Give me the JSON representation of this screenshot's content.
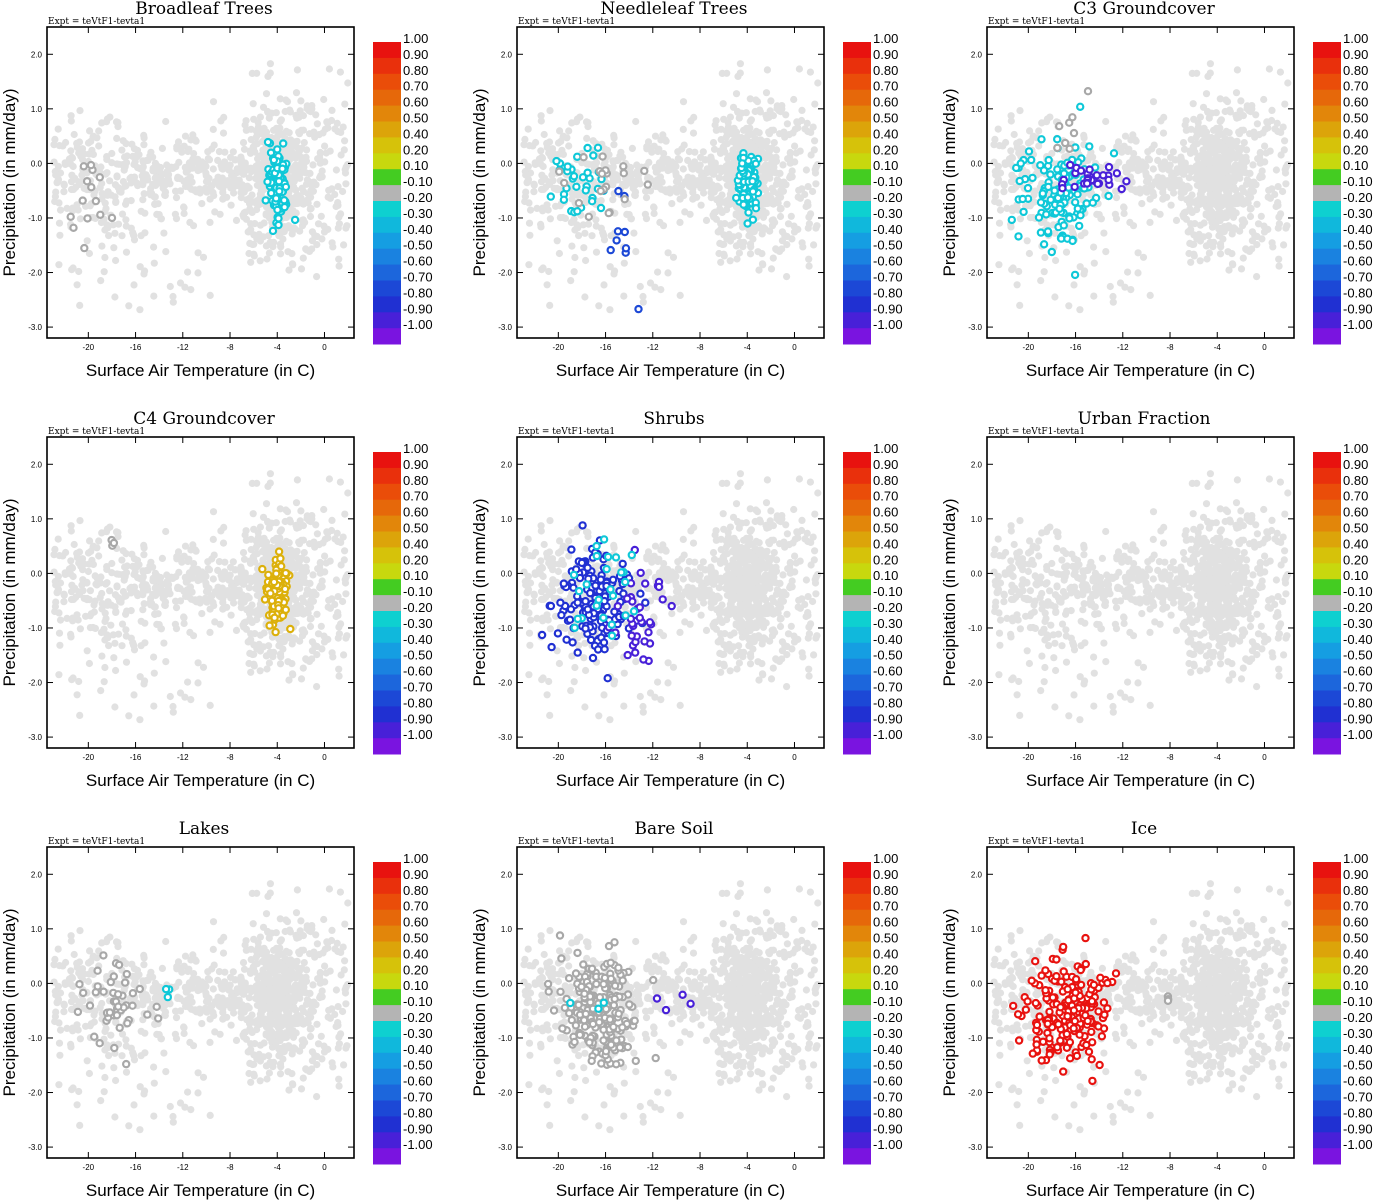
{
  "figure": {
    "expt_label": "Expt = teVtF1-tevta1",
    "xlabel": "Surface Air Temperature (in C)",
    "ylabel": "Precipitation (in mm/day)"
  },
  "colorbar": {
    "labels": [
      "1.00",
      "0.90",
      "0.80",
      "0.70",
      "0.60",
      "0.50",
      "0.40",
      "0.20",
      "0.10",
      "-0.10",
      "-0.20",
      "-0.30",
      "-0.40",
      "-0.50",
      "-0.60",
      "-0.70",
      "-0.80",
      "-0.90",
      "-1.00"
    ],
    "colors": [
      "#e8120f",
      "#e9300c",
      "#ea4d09",
      "#e6680a",
      "#e2860a",
      "#dca40a",
      "#d6c20a",
      "#c8d80e",
      "#44cc22",
      "#b4b4b4",
      "#0ed0d0",
      "#10b8dc",
      "#159ee2",
      "#1a82e0",
      "#1c66dc",
      "#1c48d6",
      "#2030d2",
      "#4820d8",
      "#7a14e0"
    ]
  },
  "chart_data": [
    {
      "type": "scatter",
      "title": "Broadleaf Trees",
      "xlabel": "Surface Air Temperature (in C)",
      "ylabel": "Precipitation (in mm/day)",
      "xlim": [
        -23.5,
        2.5
      ],
      "ylim": [
        -3.2,
        2.5
      ],
      "xticks": [
        "-20",
        "-16",
        "-12",
        "-8",
        "-4",
        "0"
      ],
      "yticks": [
        "2.0",
        "1.0",
        "0.0",
        "-1.0",
        "-2.0",
        "-3.0"
      ],
      "background_color": "#e1e1e1",
      "highlighted": [
        {
          "color": "#0ec8d8",
          "center": [
            -4.0,
            -0.3
          ],
          "spread": [
            0.8,
            0.5
          ],
          "count": 110
        },
        {
          "color": "#a8a8a8",
          "center": [
            -19.5,
            -0.6
          ],
          "spread": [
            2.0,
            0.7
          ],
          "count": 14
        }
      ]
    },
    {
      "type": "scatter",
      "title": "Needleleaf Trees",
      "xlabel": "Surface Air Temperature (in C)",
      "ylabel": "Precipitation (in mm/day)",
      "xlim": [
        -23.5,
        2.5
      ],
      "ylim": [
        -3.2,
        2.5
      ],
      "xticks": [
        "-20",
        "-16",
        "-12",
        "-8",
        "-4",
        "0"
      ],
      "yticks": [
        "2.0",
        "1.0",
        "0.0",
        "-1.0",
        "-2.0",
        "-3.0"
      ],
      "background_color": "#e1e1e1",
      "highlighted": [
        {
          "color": "#0ec8d8",
          "center": [
            -4.0,
            -0.3
          ],
          "spread": [
            0.8,
            0.5
          ],
          "count": 110
        },
        {
          "color": "#0ec8d8",
          "center": [
            -18.0,
            -0.3
          ],
          "spread": [
            2.5,
            0.6
          ],
          "count": 35
        },
        {
          "color": "#1c48d6",
          "center": [
            -14.5,
            -1.2
          ],
          "spread": [
            1.5,
            1.2
          ],
          "count": 10
        },
        {
          "color": "#a8a8a8",
          "center": [
            -16.0,
            -0.3
          ],
          "spread": [
            3.0,
            0.5
          ],
          "count": 20
        }
      ]
    },
    {
      "type": "scatter",
      "title": "C3 Groundcover",
      "xlabel": "Surface Air Temperature (in C)",
      "ylabel": "Precipitation (in mm/day)",
      "xlim": [
        -23.5,
        2.5
      ],
      "ylim": [
        -3.2,
        2.5
      ],
      "xticks": [
        "-20",
        "-16",
        "-12",
        "-8",
        "-4",
        "0"
      ],
      "yticks": [
        "2.0",
        "1.0",
        "0.0",
        "-1.0",
        "-2.0",
        "-3.0"
      ],
      "background_color": "#e1e1e1",
      "highlighted": [
        {
          "color": "#0ec8d8",
          "center": [
            -17.0,
            -0.5
          ],
          "spread": [
            3.0,
            0.8
          ],
          "count": 130
        },
        {
          "color": "#4820d8",
          "center": [
            -15.0,
            -0.3
          ],
          "spread": [
            2.5,
            0.2
          ],
          "count": 30
        },
        {
          "color": "#a8a8a8",
          "center": [
            -16.5,
            0.5
          ],
          "spread": [
            1.5,
            0.6
          ],
          "count": 8
        }
      ]
    },
    {
      "type": "scatter",
      "title": "C4 Groundcover",
      "xlabel": "Surface Air Temperature (in C)",
      "ylabel": "Precipitation (in mm/day)",
      "xlim": [
        -23.5,
        2.5
      ],
      "ylim": [
        -3.2,
        2.5
      ],
      "xticks": [
        "-20",
        "-16",
        "-12",
        "-8",
        "-4",
        "0"
      ],
      "yticks": [
        "2.0",
        "1.0",
        "0.0",
        "-1.0",
        "-2.0",
        "-3.0"
      ],
      "background_color": "#e1e1e1",
      "highlighted": [
        {
          "color": "#dcb00a",
          "center": [
            -4.0,
            -0.35
          ],
          "spread": [
            0.8,
            0.5
          ],
          "count": 120
        },
        {
          "color": "#a8a8a8",
          "center": [
            -18.0,
            0.6
          ],
          "spread": [
            0.5,
            0.3
          ],
          "count": 3
        }
      ]
    },
    {
      "type": "scatter",
      "title": "Shrubs",
      "xlabel": "Surface Air Temperature (in C)",
      "ylabel": "Precipitation (in mm/day)",
      "xlim": [
        -23.5,
        2.5
      ],
      "ylim": [
        -3.2,
        2.5
      ],
      "xticks": [
        "-20",
        "-16",
        "-12",
        "-8",
        "-4",
        "0"
      ],
      "yticks": [
        "2.0",
        "1.0",
        "0.0",
        "-1.0",
        "-2.0",
        "-3.0"
      ],
      "background_color": "#e1e1e1",
      "highlighted": [
        {
          "color": "#2030d2",
          "center": [
            -17.0,
            -0.5
          ],
          "spread": [
            3.0,
            0.8
          ],
          "count": 150
        },
        {
          "color": "#4820d8",
          "center": [
            -13.0,
            -0.8
          ],
          "spread": [
            2.0,
            0.8
          ],
          "count": 35
        },
        {
          "color": "#0ec8d8",
          "center": [
            -16.0,
            -0.3
          ],
          "spread": [
            2.5,
            0.8
          ],
          "count": 25
        }
      ]
    },
    {
      "type": "scatter",
      "title": "Urban Fraction",
      "xlabel": "Surface Air Temperature (in C)",
      "ylabel": "Precipitation (in mm/day)",
      "xlim": [
        -23.5,
        2.5
      ],
      "ylim": [
        -3.2,
        2.5
      ],
      "xticks": [
        "-20",
        "-16",
        "-12",
        "-8",
        "-4",
        "0"
      ],
      "yticks": [
        "2.0",
        "1.0",
        "0.0",
        "-1.0",
        "-2.0",
        "-3.0"
      ],
      "background_color": "#e1e1e1",
      "highlighted": []
    },
    {
      "type": "scatter",
      "title": "Lakes",
      "xlabel": "Surface Air Temperature (in C)",
      "ylabel": "Precipitation (in mm/day)",
      "xlim": [
        -23.5,
        2.5
      ],
      "ylim": [
        -3.2,
        2.5
      ],
      "xticks": [
        "-20",
        "-16",
        "-12",
        "-8",
        "-4",
        "0"
      ],
      "yticks": [
        "2.0",
        "1.0",
        "0.0",
        "-1.0",
        "-2.0",
        "-3.0"
      ],
      "background_color": "#e1e1e1",
      "highlighted": [
        {
          "color": "#a8a8a8",
          "center": [
            -17.5,
            -0.4
          ],
          "spread": [
            2.5,
            0.6
          ],
          "count": 45
        },
        {
          "color": "#0ec8d8",
          "center": [
            -13.0,
            -0.2
          ],
          "spread": [
            1.0,
            0.2
          ],
          "count": 3
        }
      ]
    },
    {
      "type": "scatter",
      "title": "Bare Soil",
      "xlabel": "Surface Air Temperature (in C)",
      "ylabel": "Precipitation (in mm/day)",
      "xlim": [
        -23.5,
        2.5
      ],
      "ylim": [
        -3.2,
        2.5
      ],
      "xticks": [
        "-20",
        "-16",
        "-12",
        "-8",
        "-4",
        "0"
      ],
      "yticks": [
        "2.0",
        "1.0",
        "0.0",
        "-1.0",
        "-2.0",
        "-3.0"
      ],
      "background_color": "#e1e1e1",
      "highlighted": [
        {
          "color": "#a8a8a8",
          "center": [
            -16.5,
            -0.5
          ],
          "spread": [
            3.0,
            0.8
          ],
          "count": 220
        },
        {
          "color": "#4820d8",
          "center": [
            -10.0,
            -0.3
          ],
          "spread": [
            2.0,
            0.2
          ],
          "count": 4
        },
        {
          "color": "#0ec8d8",
          "center": [
            -18.0,
            -0.35
          ],
          "spread": [
            2.0,
            0.2
          ],
          "count": 3
        }
      ]
    },
    {
      "type": "scatter",
      "title": "Ice",
      "xlabel": "Surface Air Temperature (in C)",
      "ylabel": "Precipitation (in mm/day)",
      "xlim": [
        -23.5,
        2.5
      ],
      "ylim": [
        -3.2,
        2.5
      ],
      "xticks": [
        "-20",
        "-16",
        "-12",
        "-8",
        "-4",
        "0"
      ],
      "yticks": [
        "2.0",
        "1.0",
        "0.0",
        "-1.0",
        "-2.0",
        "-3.0"
      ],
      "background_color": "#e1e1e1",
      "highlighted": [
        {
          "color": "#e8120f",
          "center": [
            -16.5,
            -0.5
          ],
          "spread": [
            3.0,
            0.8
          ],
          "count": 220
        },
        {
          "color": "#a8a8a8",
          "center": [
            -8.0,
            -0.3
          ],
          "spread": [
            0.5,
            0.1
          ],
          "count": 3
        }
      ]
    }
  ]
}
